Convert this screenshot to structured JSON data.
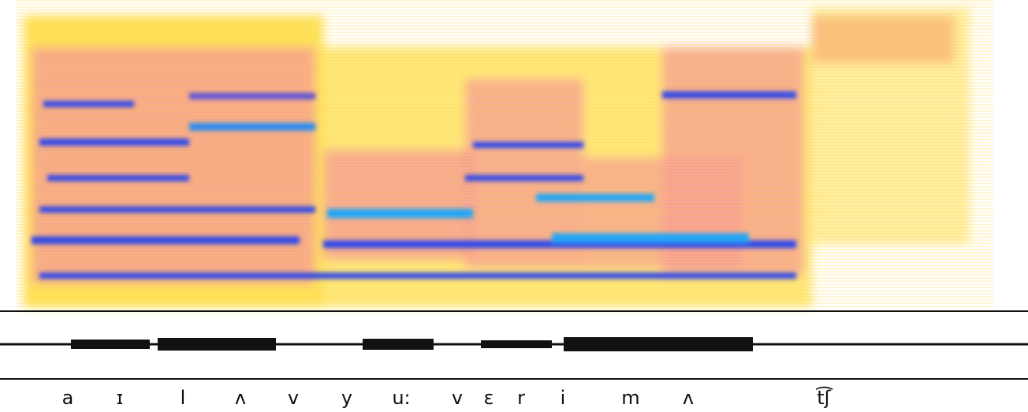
{
  "phonemes": [
    "a",
    "ɪ",
    "l",
    "ʌ",
    "v",
    "y",
    "u:",
    "v",
    "ɛ",
    "r",
    "i",
    "m",
    "ʌ",
    "t͡ʃ"
  ]
}
